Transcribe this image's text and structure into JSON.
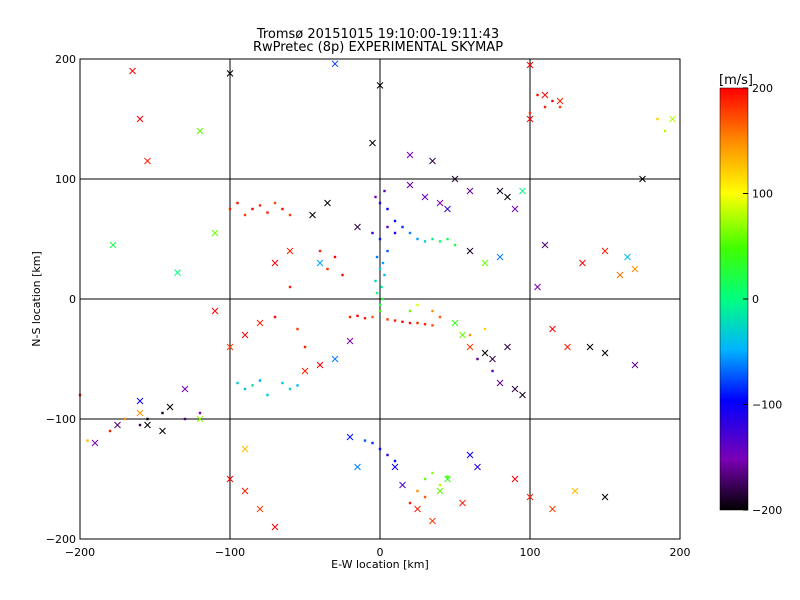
{
  "chart_data": {
    "type": "scatter",
    "title": "Tromsø 20151015 19:10:00-19:11:43",
    "subtitle": "RwPretec (8p) EXPERIMENTAL SKYMAP",
    "xlabel": "E-W location [km]",
    "ylabel": "N-S location [km]",
    "xlim": [
      -200,
      200
    ],
    "ylim": [
      -200,
      200
    ],
    "x_ticks": [
      -200,
      -100,
      0,
      100,
      200
    ],
    "y_ticks": [
      -200,
      -100,
      0,
      100,
      200
    ],
    "grid": true,
    "colorbar": {
      "label": "[m/s]",
      "range": [
        -200,
        200
      ],
      "ticks": [
        200,
        100,
        0,
        -100,
        -200
      ]
    },
    "series": [
      {
        "marker": "dot",
        "points": [
          [
            5,
            -17,
            180
          ],
          [
            10,
            -18,
            190
          ],
          [
            15,
            -19,
            200
          ],
          [
            20,
            -20,
            195
          ],
          [
            25,
            -20,
            185
          ],
          [
            30,
            -21,
            190
          ],
          [
            35,
            -22,
            175
          ],
          [
            -5,
            -15,
            170
          ],
          [
            -10,
            -16,
            190
          ],
          [
            -15,
            -14,
            200
          ],
          [
            -20,
            -15,
            185
          ],
          [
            0,
            -10,
            50
          ],
          [
            0,
            -5,
            20
          ],
          [
            2,
            0,
            30
          ],
          [
            -2,
            5,
            10
          ],
          [
            1,
            10,
            -10
          ],
          [
            -3,
            15,
            -20
          ],
          [
            3,
            20,
            -40
          ],
          [
            0,
            25,
            -30
          ],
          [
            2,
            30,
            -50
          ],
          [
            -2,
            35,
            -60
          ],
          [
            5,
            40,
            -70
          ],
          [
            0,
            50,
            -90
          ],
          [
            -5,
            55,
            -120
          ],
          [
            5,
            60,
            -140
          ],
          [
            10,
            55,
            -110
          ],
          [
            0,
            80,
            -120
          ],
          [
            -3,
            85,
            -150
          ],
          [
            3,
            90,
            -140
          ],
          [
            5,
            75,
            -100
          ],
          [
            10,
            65,
            -90
          ],
          [
            15,
            60,
            -80
          ],
          [
            20,
            55,
            -60
          ],
          [
            25,
            50,
            -50
          ],
          [
            30,
            48,
            -30
          ],
          [
            35,
            50,
            -10
          ],
          [
            40,
            48,
            10
          ],
          [
            45,
            50,
            20
          ],
          [
            50,
            45,
            30
          ],
          [
            -100,
            75,
            190
          ],
          [
            -95,
            80,
            195
          ],
          [
            -90,
            70,
            180
          ],
          [
            -85,
            75,
            200
          ],
          [
            -80,
            78,
            185
          ],
          [
            -75,
            72,
            190
          ],
          [
            -70,
            80,
            175
          ],
          [
            -65,
            75,
            195
          ],
          [
            -60,
            70,
            180
          ],
          [
            110,
            160,
            190
          ],
          [
            115,
            165,
            200
          ],
          [
            100,
            155,
            185
          ],
          [
            105,
            170,
            195
          ],
          [
            120,
            160,
            180
          ],
          [
            -95,
            -70,
            -30
          ],
          [
            -90,
            -75,
            -40
          ],
          [
            -85,
            -72,
            -20
          ],
          [
            -80,
            -68,
            -50
          ],
          [
            -75,
            -80,
            -35
          ],
          [
            -65,
            -70,
            -30
          ],
          [
            -60,
            -75,
            -25
          ],
          [
            -55,
            -72,
            -40
          ],
          [
            -5,
            -120,
            -80
          ],
          [
            0,
            -125,
            -100
          ],
          [
            5,
            -130,
            -120
          ],
          [
            10,
            -135,
            -90
          ],
          [
            -10,
            -118,
            -70
          ],
          [
            30,
            -150,
            60
          ],
          [
            35,
            -145,
            70
          ],
          [
            40,
            -155,
            80
          ],
          [
            45,
            -148,
            50
          ],
          [
            25,
            -160,
            150
          ],
          [
            30,
            -165,
            170
          ],
          [
            20,
            -170,
            190
          ],
          [
            -120,
            -95,
            -150
          ],
          [
            -130,
            -100,
            -170
          ],
          [
            -145,
            -95,
            -190
          ],
          [
            -155,
            -100,
            -200
          ],
          [
            -160,
            -105,
            -180
          ],
          [
            -170,
            -100,
            150
          ],
          [
            -180,
            -110,
            190
          ],
          [
            -195,
            -118,
            130
          ],
          [
            -40,
            40,
            190
          ],
          [
            -30,
            35,
            200
          ],
          [
            -35,
            25,
            185
          ],
          [
            -25,
            20,
            195
          ],
          [
            20,
            -10,
            60
          ],
          [
            25,
            -5,
            90
          ],
          [
            35,
            -10,
            150
          ],
          [
            40,
            -15,
            170
          ],
          [
            -60,
            10,
            190
          ],
          [
            -55,
            -25,
            180
          ],
          [
            -70,
            -15,
            200
          ],
          [
            -50,
            -40,
            190
          ],
          [
            60,
            -30,
            150
          ],
          [
            70,
            -25,
            120
          ],
          [
            65,
            -50,
            -160
          ],
          [
            75,
            -60,
            -140
          ],
          [
            -200,
            -80,
            190
          ],
          [
            190,
            140,
            80
          ],
          [
            185,
            150,
            120
          ]
        ]
      },
      {
        "marker": "x",
        "points": [
          [
            -165,
            190,
            200
          ],
          [
            -100,
            188,
            -200
          ],
          [
            0,
            178,
            -200
          ],
          [
            -30,
            196,
            -80
          ],
          [
            -120,
            140,
            60
          ],
          [
            -110,
            55,
            60
          ],
          [
            -178,
            45,
            20
          ],
          [
            -135,
            22,
            0
          ],
          [
            -160,
            150,
            200
          ],
          [
            -155,
            115,
            190
          ],
          [
            100,
            195,
            200
          ],
          [
            -5,
            130,
            -200
          ],
          [
            20,
            120,
            -150
          ],
          [
            35,
            115,
            -180
          ],
          [
            50,
            100,
            -190
          ],
          [
            60,
            90,
            -160
          ],
          [
            80,
            90,
            -190
          ],
          [
            85,
            85,
            -200
          ],
          [
            95,
            90,
            0
          ],
          [
            90,
            75,
            -150
          ],
          [
            -45,
            70,
            -200
          ],
          [
            -35,
            80,
            -200
          ],
          [
            -15,
            60,
            -180
          ],
          [
            20,
            95,
            -160
          ],
          [
            30,
            85,
            -140
          ],
          [
            40,
            80,
            -150
          ],
          [
            45,
            75,
            -120
          ],
          [
            -60,
            40,
            190
          ],
          [
            -70,
            30,
            200
          ],
          [
            -40,
            30,
            -50
          ],
          [
            60,
            40,
            -190
          ],
          [
            70,
            30,
            60
          ],
          [
            80,
            35,
            -60
          ],
          [
            105,
            10,
            -150
          ],
          [
            110,
            45,
            -170
          ],
          [
            135,
            30,
            200
          ],
          [
            150,
            40,
            190
          ],
          [
            160,
            20,
            160
          ],
          [
            170,
            25,
            150
          ],
          [
            165,
            35,
            -40
          ],
          [
            175,
            100,
            -200
          ],
          [
            -110,
            -10,
            200
          ],
          [
            -80,
            -20,
            190
          ],
          [
            -90,
            -30,
            200
          ],
          [
            -100,
            -40,
            180
          ],
          [
            -20,
            -35,
            -150
          ],
          [
            -30,
            -50,
            -60
          ],
          [
            -40,
            -55,
            200
          ],
          [
            -50,
            -60,
            190
          ],
          [
            50,
            -20,
            40
          ],
          [
            55,
            -30,
            60
          ],
          [
            60,
            -40,
            180
          ],
          [
            70,
            -45,
            -200
          ],
          [
            75,
            -50,
            -180
          ],
          [
            85,
            -40,
            -180
          ],
          [
            80,
            -70,
            -160
          ],
          [
            90,
            -75,
            -180
          ],
          [
            95,
            -80,
            -190
          ],
          [
            115,
            -25,
            200
          ],
          [
            125,
            -40,
            190
          ],
          [
            140,
            -40,
            -200
          ],
          [
            150,
            -45,
            -200
          ],
          [
            170,
            -55,
            -160
          ],
          [
            -130,
            -75,
            -150
          ],
          [
            -160,
            -85,
            -100
          ],
          [
            -140,
            -90,
            -200
          ],
          [
            -145,
            -110,
            -200
          ],
          [
            -155,
            -105,
            -200
          ],
          [
            -175,
            -105,
            -170
          ],
          [
            -190,
            -120,
            -150
          ],
          [
            -160,
            -95,
            150
          ],
          [
            -100,
            -150,
            200
          ],
          [
            -90,
            -160,
            190
          ],
          [
            -80,
            -175,
            180
          ],
          [
            -70,
            -190,
            200
          ],
          [
            10,
            -140,
            -100
          ],
          [
            15,
            -155,
            -130
          ],
          [
            25,
            -175,
            190
          ],
          [
            35,
            -185,
            180
          ],
          [
            40,
            -160,
            60
          ],
          [
            45,
            -150,
            40
          ],
          [
            55,
            -170,
            190
          ],
          [
            90,
            -150,
            200
          ],
          [
            100,
            -165,
            190
          ],
          [
            115,
            -175,
            180
          ],
          [
            130,
            -160,
            130
          ],
          [
            150,
            -165,
            -200
          ],
          [
            -15,
            -140,
            -60
          ],
          [
            -20,
            -115,
            -90
          ],
          [
            60,
            -130,
            -100
          ],
          [
            65,
            -140,
            -110
          ],
          [
            110,
            170,
            200
          ],
          [
            120,
            165,
            190
          ],
          [
            100,
            150,
            200
          ],
          [
            195,
            150,
            80
          ],
          [
            -120,
            -100,
            70
          ],
          [
            -90,
            -125,
            130
          ]
        ]
      }
    ]
  }
}
